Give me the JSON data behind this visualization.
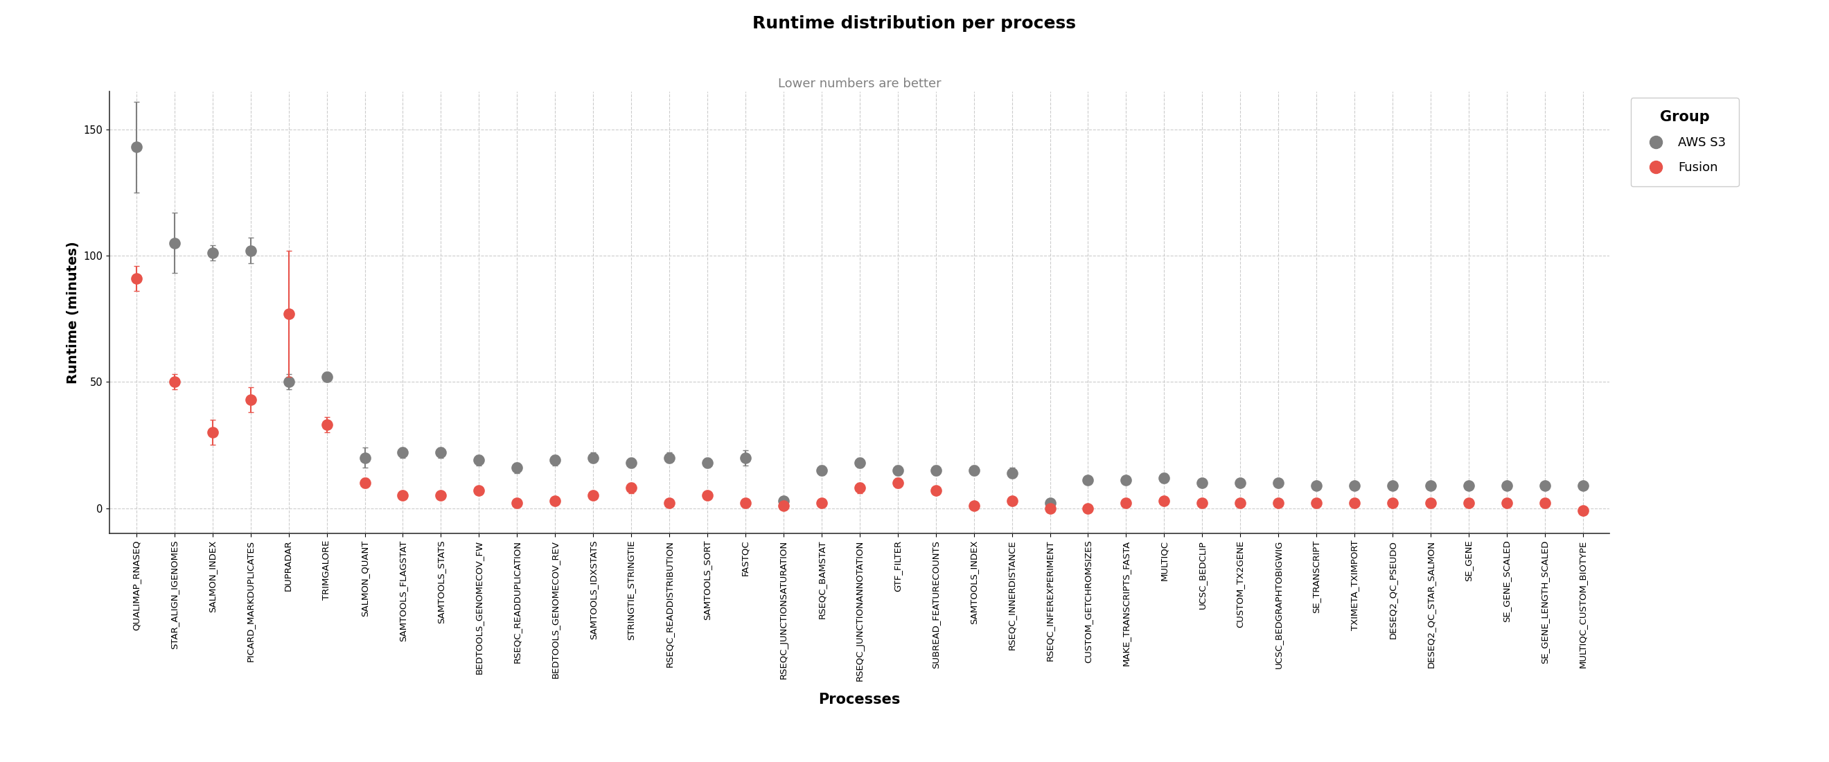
{
  "title": "Runtime distribution per process",
  "subtitle": "Lower numbers are better",
  "xlabel": "Processes",
  "ylabel": "Runtime (minutes)",
  "title_fontsize": 18,
  "subtitle_fontsize": 13,
  "label_fontsize": 13,
  "tick_fontsize": 9.5,
  "legend_title": "Group",
  "s3_color": "#7f7f7f",
  "fusion_color": "#e8534a",
  "processes": [
    "QUALIMAP_RNASEQ",
    "STAR_ALIGN_IGENOMES",
    "SALMON_INDEX",
    "PICARD_MARKDUPLICATES",
    "DUPRADAR",
    "TRIMGALORE",
    "SALMON_QUANT",
    "SAMTOOLS_FLAGSTAT",
    "SAMTOOLS_STATS",
    "BEDTOOLS_GENOMECOV_FW",
    "RSEQC_READDUPLICATION",
    "BEDTOOLS_GENOMECOV_REV",
    "SAMTOOLS_IDXSTATS",
    "STRINGTIE_STRINGTIE",
    "RSEQC_READDISTRIBUTION",
    "SAMTOOLS_SORT",
    "FASTQC",
    "RSEQC_JUNCTIONSATURATION",
    "RSEQC_BAMSTAT",
    "RSEQC_JUNCTIONANNOTATION",
    "GTF_FILTER",
    "SUBREAD_FEATURECOUNTS",
    "SAMTOOLS_INDEX",
    "RSEQC_INNERDISTANCE",
    "RSEQC_INFEREXPERIMENT",
    "CUSTOM_GETCHROMSIZES",
    "MAKE_TRANSCRIPTS_FASTA",
    "MULTIQC",
    "UCSC_BEDCLIP",
    "CUSTOM_TX2GENE",
    "UCSC_BEDGRAPHTOBIGWIG",
    "SE_TRANSCRIPT",
    "TXIMETA_TXIMPORT",
    "DESEQ2_QC_PSEUDO",
    "DESEQ2_QC_STAR_SALMON",
    "SE_GENE",
    "SE_GENE_SCALED",
    "SE_GENE_LENGTH_SCALED",
    "MULTIQC_CUSTOM_BIOTYPE"
  ],
  "s3_mean": [
    143,
    105,
    101,
    102,
    50,
    52,
    20,
    22,
    22,
    19,
    16,
    19,
    20,
    18,
    20,
    18,
    20,
    3,
    15,
    18,
    15,
    15,
    15,
    14,
    2,
    11,
    11,
    12,
    10,
    10,
    10,
    9,
    9,
    9,
    9,
    9,
    9,
    9,
    9
  ],
  "s3_err": [
    18,
    12,
    3,
    5,
    3,
    2,
    4,
    2,
    2,
    2,
    2,
    2,
    2,
    2,
    2,
    2,
    3,
    1,
    2,
    2,
    2,
    2,
    2,
    2,
    1,
    1,
    1,
    2,
    1,
    1,
    1,
    1,
    1,
    1,
    1,
    1,
    1,
    1,
    1
  ],
  "fusion_mean": [
    91,
    50,
    30,
    43,
    77,
    33,
    10,
    5,
    5,
    7,
    2,
    3,
    5,
    8,
    2,
    5,
    2,
    1,
    2,
    8,
    10,
    7,
    1,
    3,
    0,
    0,
    2,
    3,
    2,
    2,
    2,
    2,
    2,
    2,
    2,
    2,
    2,
    2,
    -1
  ],
  "fusion_err": [
    5,
    3,
    5,
    5,
    25,
    3,
    2,
    1,
    1,
    1,
    1,
    1,
    1,
    2,
    1,
    1,
    1,
    1,
    1,
    2,
    2,
    1,
    1,
    1,
    1,
    1,
    1,
    1,
    1,
    1,
    1,
    1,
    1,
    1,
    1,
    1,
    1,
    1,
    1
  ],
  "ylim": [
    -10,
    165
  ],
  "yticks": [
    0,
    50,
    100,
    150
  ],
  "background_color": "#ffffff",
  "grid_color": "#cccccc",
  "marker_size": 120,
  "elinewidth": 1.5,
  "capsize": 3
}
